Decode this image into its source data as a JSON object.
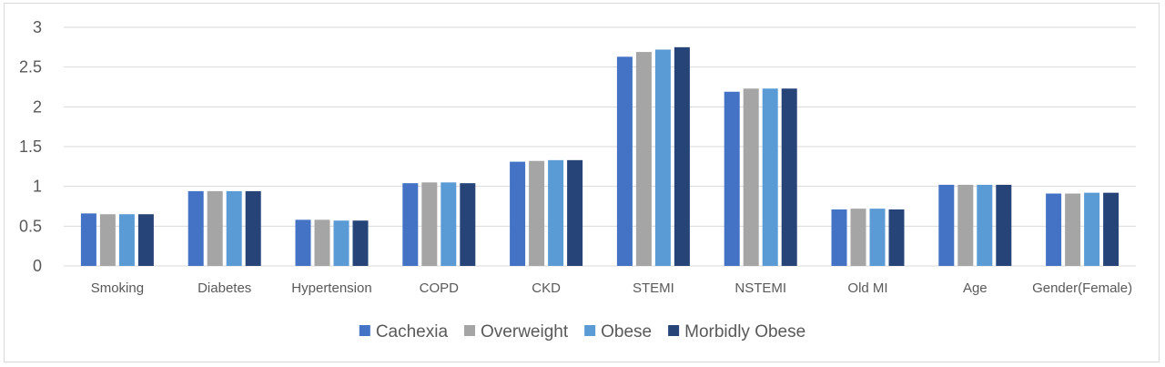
{
  "chart_data": {
    "type": "bar",
    "title": "",
    "xlabel": "",
    "ylabel": "",
    "ylim": [
      0,
      3
    ],
    "yticks": [
      "0",
      "0.5",
      "1",
      "1.5",
      "2",
      "2.5",
      "3"
    ],
    "grid": true,
    "legend_position": "bottom",
    "categories": [
      "Smoking",
      "Diabetes",
      "Hypertension",
      "COPD",
      "CKD",
      "STEMI",
      "NSTEMI",
      "Old MI",
      "Age",
      "Gender(Female)"
    ],
    "series": [
      {
        "name": "Cachexia",
        "color": "#4472c4",
        "values": [
          0.66,
          0.94,
          0.58,
          1.04,
          1.31,
          2.63,
          2.19,
          0.71,
          1.02,
          0.91
        ]
      },
      {
        "name": "Overweight",
        "color": "#a5a5a5",
        "values": [
          0.65,
          0.94,
          0.58,
          1.05,
          1.32,
          2.69,
          2.23,
          0.72,
          1.02,
          0.91
        ]
      },
      {
        "name": "Obese",
        "color": "#5b9bd5",
        "values": [
          0.65,
          0.94,
          0.57,
          1.05,
          1.33,
          2.72,
          2.23,
          0.72,
          1.02,
          0.92
        ]
      },
      {
        "name": "Morbidly Obese",
        "color": "#264478",
        "values": [
          0.65,
          0.94,
          0.57,
          1.04,
          1.33,
          2.75,
          2.23,
          0.71,
          1.02,
          0.92
        ]
      }
    ]
  }
}
